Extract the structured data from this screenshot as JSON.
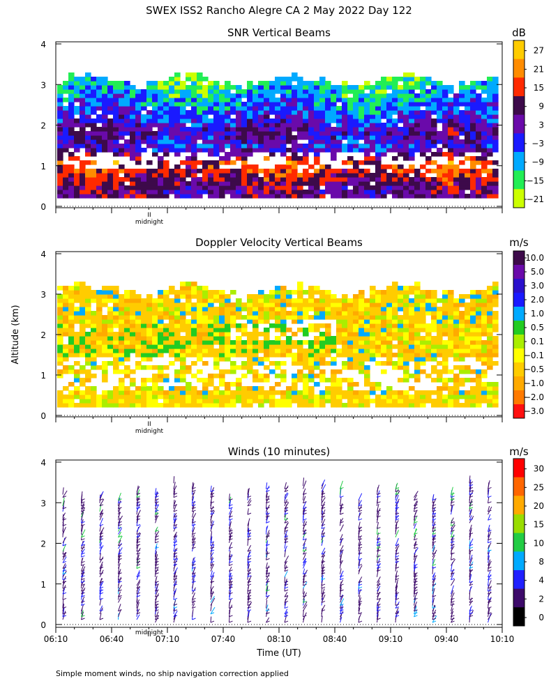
{
  "title": "SWEX ISS2 Rancho Alegre CA   2 May 2022 Day 122",
  "ylabel": "Altitude (km)",
  "xlabel": "Time (UT)",
  "footnote": "Simple moment winds, no ship navigation correction applied",
  "midnight_label": "midnight",
  "chart_data": [
    {
      "type": "heatmap",
      "title": "SNR Vertical Beams",
      "ylim": [
        0,
        4
      ],
      "yticks": [
        "0",
        "1",
        "2",
        "3",
        "4"
      ],
      "colorbar_unit": "dB",
      "colorbar_labels": [
        "27",
        "21",
        "15",
        "9",
        "3",
        "−3",
        "−9",
        "−15",
        "−21"
      ],
      "colors": [
        "#ffcc00",
        "#ff8c00",
        "#ff2a00",
        "#3d0a4a",
        "#6a0aaa",
        "#1a1aff",
        "#00aaff",
        "#22ee55",
        "#ccff00"
      ],
      "profile": [
        {
          "altitude_km": 0.3,
          "snr_db": 6
        },
        {
          "altitude_km": 0.6,
          "snr_db": 10
        },
        {
          "altitude_km": 1.0,
          "snr_db": 16
        },
        {
          "altitude_km": 1.4,
          "snr_db": -2
        },
        {
          "altitude_km": 1.8,
          "snr_db": 4
        },
        {
          "altitude_km": 2.2,
          "snr_db": -4
        },
        {
          "altitude_km": 2.6,
          "snr_db": -8
        },
        {
          "altitude_km": 3.0,
          "snr_db": -14
        }
      ]
    },
    {
      "type": "heatmap",
      "title": "Doppler Velocity Vertical Beams",
      "ylim": [
        0,
        4
      ],
      "yticks": [
        "0",
        "1",
        "2",
        "3",
        "4"
      ],
      "colorbar_unit": "m/s",
      "colorbar_labels": [
        "10.0",
        "5.0",
        "3.0",
        "2.0",
        "1.0",
        "0.5",
        "0.1",
        "−0.1",
        "−0.5",
        "−1.0",
        "−2.0",
        "−3.0"
      ],
      "colors": [
        "#3d0a4a",
        "#6a0aaa",
        "#2a10cc",
        "#1a1aff",
        "#00aaff",
        "#22cc22",
        "#aaee00",
        "#ffff00",
        "#ffcc00",
        "#ffaa00",
        "#ff7a00",
        "#ff1010"
      ]
    },
    {
      "type": "scatter",
      "title": "Winds (10 minutes)",
      "ylim": [
        0,
        4
      ],
      "yticks": [
        "0",
        "1",
        "2",
        "3",
        "4"
      ],
      "x": [
        "06:10",
        "06:40",
        "07:10",
        "07:40",
        "08:10",
        "08:40",
        "09:10",
        "09:40",
        "10:10"
      ],
      "colorbar_unit": "m/s",
      "colorbar_labels": [
        "30",
        "25",
        "20",
        "15",
        "10",
        "8",
        "4",
        "2",
        "0"
      ],
      "colors": [
        "#ff0000",
        "#ff6600",
        "#ffaa00",
        "#99dd00",
        "#22cc44",
        "#00aaff",
        "#2020ff",
        "#3d0a6a",
        "#000000"
      ]
    }
  ]
}
